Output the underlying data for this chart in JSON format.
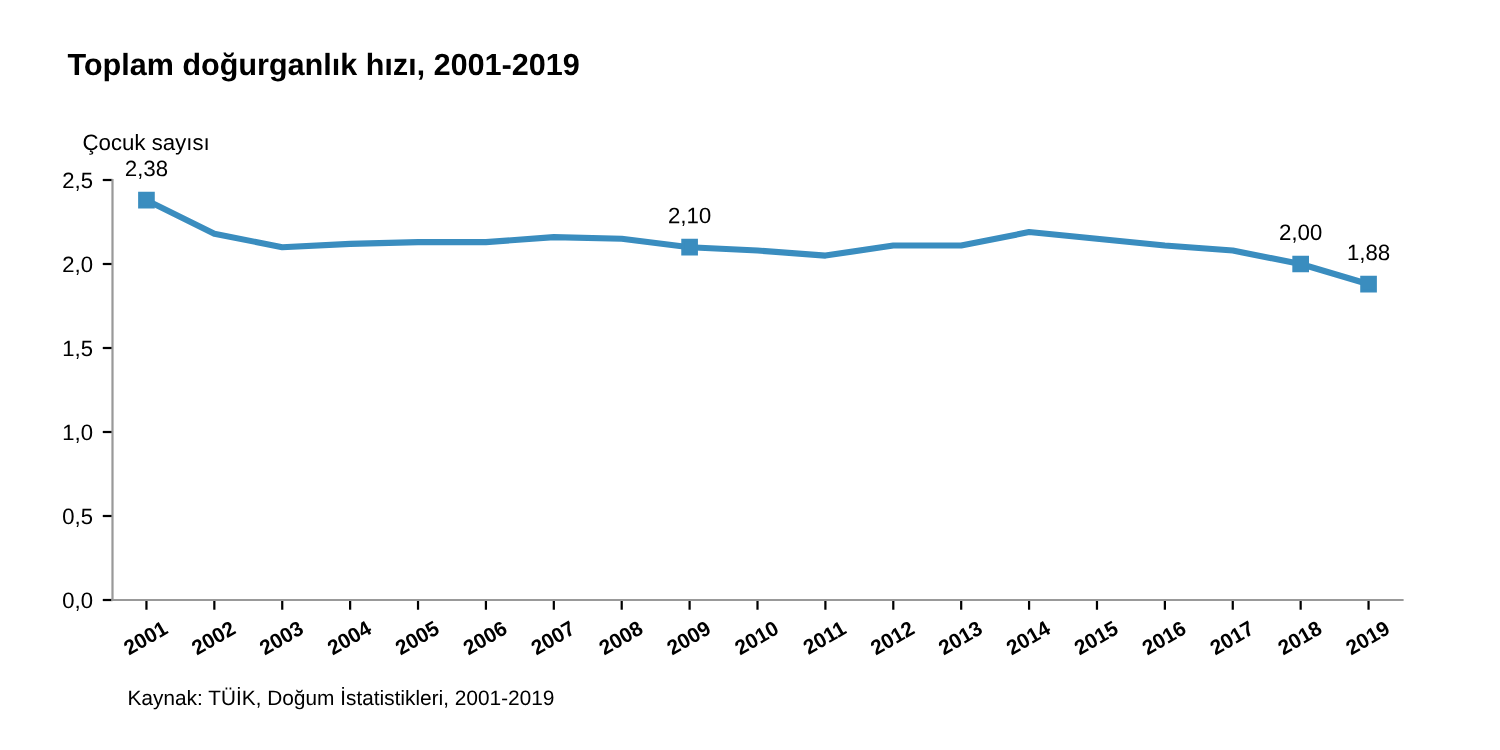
{
  "chart_data": {
    "type": "line",
    "title": "Toplam doğurganlık hızı, 2001-2019",
    "ylabel": "Çocuk sayısı",
    "categories": [
      "2001",
      "2002",
      "2003",
      "2004",
      "2005",
      "2006",
      "2007",
      "2008",
      "2009",
      "2010",
      "2011",
      "2012",
      "2013",
      "2014",
      "2015",
      "2016",
      "2017",
      "2018",
      "2019"
    ],
    "series": [
      {
        "color": "#3a8dbf",
        "values": [
          2.38,
          2.18,
          2.1,
          2.12,
          2.13,
          2.13,
          2.16,
          2.15,
          2.1,
          2.08,
          2.05,
          2.11,
          2.11,
          2.19,
          2.15,
          2.11,
          2.08,
          2.0,
          1.88
        ],
        "value_labels": [
          "2,38",
          null,
          null,
          null,
          null,
          null,
          null,
          null,
          "2,10",
          null,
          null,
          null,
          null,
          null,
          null,
          null,
          null,
          "2,00",
          "1,88"
        ]
      }
    ],
    "ylim": [
      0,
      2.5
    ],
    "yticks": [
      {
        "value": 0,
        "label": "0,0"
      },
      {
        "value": 0.5,
        "label": "0,5"
      },
      {
        "value": 1,
        "label": "1,0"
      },
      {
        "value": 1.5,
        "label": "1,5"
      },
      {
        "value": 2,
        "label": "2,0"
      },
      {
        "value": 2.5,
        "label": "2,5"
      }
    ],
    "grid": false,
    "legend": false,
    "line_style": "solid",
    "annotations": [
      "Kaynak: TÜİK, Doğum İstatistikleri, 2001-2019"
    ]
  }
}
